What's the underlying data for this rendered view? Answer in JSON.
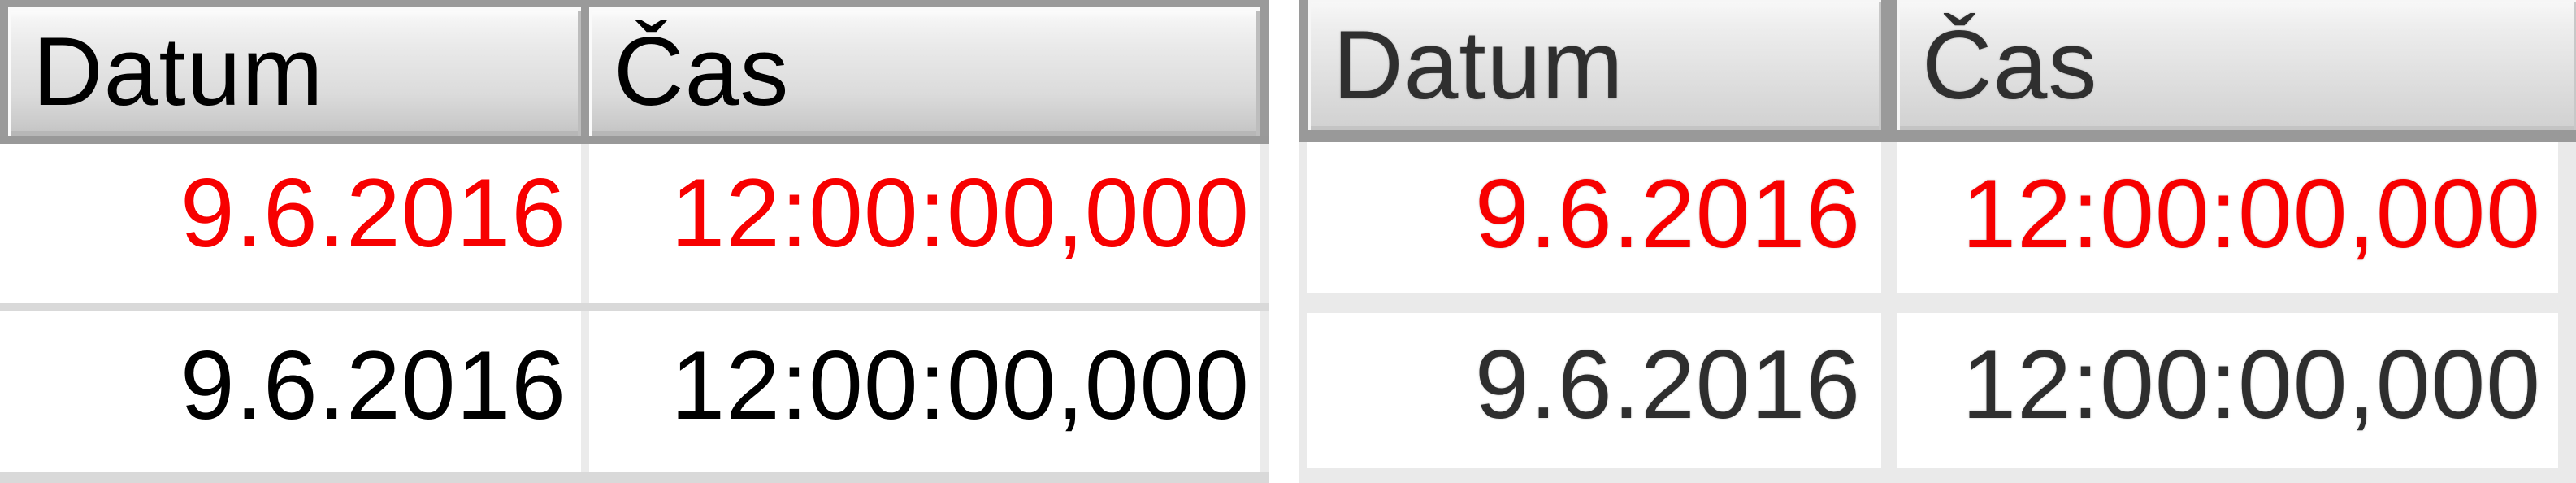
{
  "colors": {
    "border_gray": "#9a9a9a",
    "separator_left_table": "#d9d9d9",
    "separator_right_table": "#eaeaea",
    "highlight_red": "#f70000",
    "text_black": "#000000",
    "text_soft_gray": "#2e2e2e",
    "header_gradient_top": "#ffffff",
    "header_gradient_bottom": "#c3c3c3"
  },
  "tables": [
    {
      "name": "left",
      "columns": [
        {
          "label": "Datum"
        },
        {
          "label": "Čas"
        }
      ],
      "rows": [
        {
          "datum": "9.6.2016",
          "cas": "12:00:00,000",
          "style": "red"
        },
        {
          "datum": "9.6.2016",
          "cas": "12:00:00,000",
          "style": "normal"
        }
      ]
    },
    {
      "name": "right",
      "columns": [
        {
          "label": "Datum"
        },
        {
          "label": "Čas"
        }
      ],
      "rows": [
        {
          "datum": "9.6.2016",
          "cas": "12:00:00,000",
          "style": "red"
        },
        {
          "datum": "9.6.2016",
          "cas": "12:00:00,000",
          "style": "normal"
        }
      ]
    }
  ]
}
